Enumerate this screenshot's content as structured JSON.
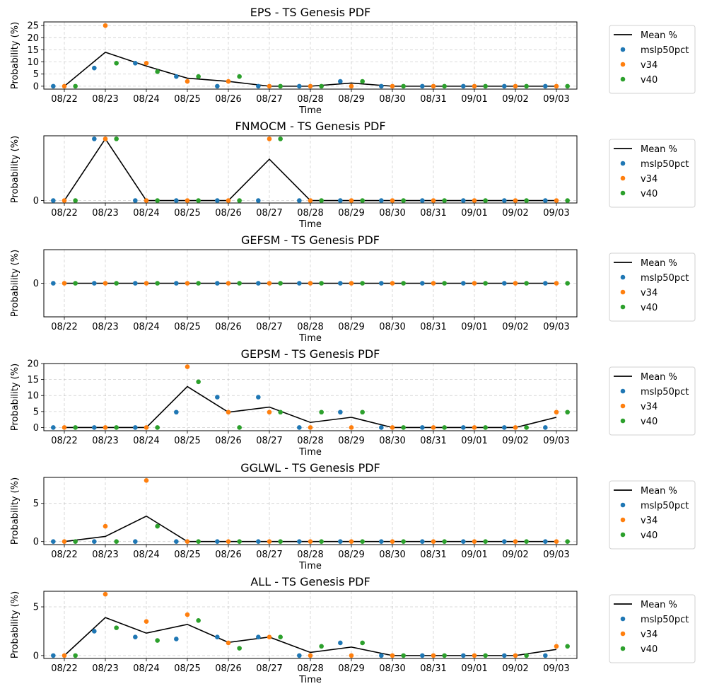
{
  "chart_data": [
    {
      "type": "scatter",
      "title": "EPS - TS Genesis PDF",
      "xlabel": "Time",
      "ylabel": "Probability (%)",
      "x_ticks": [
        "08/22",
        "08/23",
        "08/24",
        "08/25",
        "08/26",
        "08/27",
        "08/28",
        "08/29",
        "08/30",
        "08/31",
        "09/01",
        "09/02",
        "09/03"
      ],
      "y_ticks": [
        0,
        5,
        10,
        15,
        20,
        25
      ],
      "ylim": [
        -1.2,
        26.5
      ],
      "legend": [
        "Mean %",
        "mslp50pct",
        "v34",
        "v40"
      ],
      "series": [
        {
          "name": "mslp50pct",
          "x_offset": -0.27,
          "color": "#1f77b4",
          "values": [
            0,
            7.5,
            9.5,
            4,
            0,
            0,
            0,
            2,
            0,
            0,
            0,
            0,
            0
          ]
        },
        {
          "name": "v34",
          "x_offset": 0,
          "color": "#ff7f0e",
          "values": [
            0,
            25,
            9.5,
            2,
            2,
            0,
            0,
            0,
            0,
            0,
            0,
            0,
            0
          ]
        },
        {
          "name": "v40",
          "x_offset": 0.27,
          "color": "#2ca02c",
          "values": [
            0,
            9.5,
            6,
            4,
            4,
            0,
            0,
            2,
            0,
            0,
            0,
            0,
            0
          ]
        },
        {
          "name": "Mean %",
          "color": "#000000",
          "line": true,
          "values": [
            0,
            14,
            8.3,
            3.3,
            2,
            0,
            0,
            1.3,
            0,
            0,
            0,
            0,
            0
          ]
        }
      ]
    },
    {
      "type": "scatter",
      "title": "FNMOCM - TS Genesis PDF",
      "xlabel": "Time",
      "ylabel": "Probability (%)",
      "x_ticks": [
        "08/22",
        "08/23",
        "08/24",
        "08/25",
        "08/26",
        "08/27",
        "08/28",
        "08/29",
        "08/30",
        "08/31",
        "09/01",
        "09/02",
        "09/03"
      ],
      "y_ticks": [
        0
      ],
      "ylim": [
        -0.04,
        1.05
      ],
      "legend": [
        "Mean %",
        "mslp50pct",
        "v34",
        "v40"
      ],
      "series": [
        {
          "name": "mslp50pct",
          "x_offset": -0.27,
          "color": "#1f77b4",
          "values": [
            0,
            1,
            0,
            0,
            0,
            0,
            0,
            0,
            0,
            0,
            0,
            0,
            0
          ]
        },
        {
          "name": "v34",
          "x_offset": 0,
          "color": "#ff7f0e",
          "values": [
            0,
            1,
            0,
            0,
            0,
            1,
            0,
            0,
            0,
            0,
            0,
            0,
            0
          ]
        },
        {
          "name": "v40",
          "x_offset": 0.27,
          "color": "#2ca02c",
          "values": [
            0,
            1,
            0,
            0,
            0,
            1,
            0,
            0,
            0,
            0,
            0,
            0,
            0
          ]
        },
        {
          "name": "Mean %",
          "color": "#000000",
          "line": true,
          "values": [
            0,
            1,
            0,
            0,
            0,
            0.67,
            0,
            0,
            0,
            0,
            0,
            0,
            0
          ]
        }
      ]
    },
    {
      "type": "scatter",
      "title": "GEFSM - TS Genesis PDF",
      "xlabel": "Time",
      "ylabel": "Probability (%)",
      "x_ticks": [
        "08/22",
        "08/23",
        "08/24",
        "08/25",
        "08/26",
        "08/27",
        "08/28",
        "08/29",
        "08/30",
        "08/31",
        "09/01",
        "09/02",
        "09/03"
      ],
      "y_ticks": [
        0
      ],
      "ylim": [
        -0.055,
        0.055
      ],
      "legend": [
        "Mean %",
        "mslp50pct",
        "v34",
        "v40"
      ],
      "series": [
        {
          "name": "mslp50pct",
          "x_offset": -0.27,
          "color": "#1f77b4",
          "values": [
            0,
            0,
            0,
            0,
            0,
            0,
            0,
            0,
            0,
            0,
            0,
            0,
            0
          ]
        },
        {
          "name": "v34",
          "x_offset": 0,
          "color": "#ff7f0e",
          "values": [
            0,
            0,
            0,
            0,
            0,
            0,
            0,
            0,
            0,
            0,
            0,
            0,
            0
          ]
        },
        {
          "name": "v40",
          "x_offset": 0.27,
          "color": "#2ca02c",
          "values": [
            0,
            0,
            0,
            0,
            0,
            0,
            0,
            0,
            0,
            0,
            0,
            0,
            0
          ]
        },
        {
          "name": "Mean %",
          "color": "#000000",
          "line": true,
          "values": [
            0,
            0,
            0,
            0,
            0,
            0,
            0,
            0,
            0,
            0,
            0,
            0,
            0
          ]
        }
      ]
    },
    {
      "type": "scatter",
      "title": "GEPSM - TS Genesis PDF",
      "xlabel": "Time",
      "ylabel": "Probability (%)",
      "x_ticks": [
        "08/22",
        "08/23",
        "08/24",
        "08/25",
        "08/26",
        "08/27",
        "08/28",
        "08/29",
        "08/30",
        "08/31",
        "09/01",
        "09/02",
        "09/03"
      ],
      "y_ticks": [
        0,
        5,
        10,
        15,
        20
      ],
      "ylim": [
        -1,
        20
      ],
      "legend": [
        "Mean %",
        "mslp50pct",
        "v34",
        "v40"
      ],
      "series": [
        {
          "name": "mslp50pct",
          "x_offset": -0.27,
          "color": "#1f77b4",
          "values": [
            0,
            0,
            0,
            4.8,
            9.5,
            9.5,
            0,
            4.8,
            0,
            0,
            0,
            0,
            0
          ]
        },
        {
          "name": "v34",
          "x_offset": 0,
          "color": "#ff7f0e",
          "values": [
            0,
            0,
            0,
            19,
            4.8,
            4.8,
            0,
            0,
            0,
            0,
            0,
            0,
            4.8
          ]
        },
        {
          "name": "v40",
          "x_offset": 0.27,
          "color": "#2ca02c",
          "values": [
            0,
            0,
            0,
            14.3,
            0,
            4.8,
            4.8,
            4.8,
            0,
            0,
            0,
            0,
            4.8
          ]
        },
        {
          "name": "Mean %",
          "color": "#000000",
          "line": true,
          "values": [
            0,
            0,
            0,
            12.8,
            4.8,
            6.4,
            1.6,
            3.2,
            0,
            0,
            0,
            0,
            3.2
          ]
        }
      ]
    },
    {
      "type": "scatter",
      "title": "GGLWL - TS Genesis PDF",
      "xlabel": "Time",
      "ylabel": "Probability (%)",
      "x_ticks": [
        "08/22",
        "08/23",
        "08/24",
        "08/25",
        "08/26",
        "08/27",
        "08/28",
        "08/29",
        "08/30",
        "08/31",
        "09/01",
        "09/02",
        "09/03"
      ],
      "y_ticks": [
        0,
        5
      ],
      "ylim": [
        -0.4,
        8.4
      ],
      "legend": [
        "Mean %",
        "mslp50pct",
        "v34",
        "v40"
      ],
      "series": [
        {
          "name": "mslp50pct",
          "x_offset": -0.27,
          "color": "#1f77b4",
          "values": [
            0,
            0,
            0,
            0,
            0,
            0,
            0,
            0,
            0,
            0,
            0,
            0,
            0
          ]
        },
        {
          "name": "v34",
          "x_offset": 0,
          "color": "#ff7f0e",
          "values": [
            0,
            2,
            8,
            0,
            0,
            0,
            0,
            0,
            0,
            0,
            0,
            0,
            0
          ]
        },
        {
          "name": "v40",
          "x_offset": 0.27,
          "color": "#2ca02c",
          "values": [
            0,
            0,
            2,
            0,
            0,
            0,
            0,
            0,
            0,
            0,
            0,
            0,
            0
          ]
        },
        {
          "name": "Mean %",
          "color": "#000000",
          "line": true,
          "values": [
            0,
            0.67,
            3.33,
            0,
            0,
            0,
            0,
            0,
            0,
            0,
            0,
            0,
            0
          ]
        }
      ]
    },
    {
      "type": "scatter",
      "title": "ALL - TS Genesis PDF",
      "xlabel": "Time",
      "ylabel": "Probability (%)",
      "x_ticks": [
        "08/22",
        "08/23",
        "08/24",
        "08/25",
        "08/26",
        "08/27",
        "08/28",
        "08/29",
        "08/30",
        "08/31",
        "09/01",
        "09/02",
        "09/03"
      ],
      "y_ticks": [
        0,
        5
      ],
      "ylim": [
        -0.3,
        6.6
      ],
      "legend": [
        "Mean %",
        "mslp50pct",
        "v34",
        "v40"
      ],
      "series": [
        {
          "name": "mslp50pct",
          "x_offset": -0.27,
          "color": "#1f77b4",
          "values": [
            0,
            2.5,
            1.9,
            1.7,
            1.9,
            1.9,
            0,
            1.3,
            0,
            0,
            0,
            0,
            0
          ]
        },
        {
          "name": "v34",
          "x_offset": 0,
          "color": "#ff7f0e",
          "values": [
            0,
            6.3,
            3.5,
            4.2,
            1.3,
            1.9,
            0,
            0,
            0,
            0,
            0,
            0,
            0.95
          ]
        },
        {
          "name": "v40",
          "x_offset": 0.27,
          "color": "#2ca02c",
          "values": [
            0,
            2.85,
            1.55,
            3.6,
            0.75,
            1.9,
            0.95,
            1.3,
            0,
            0,
            0,
            0,
            0.95
          ]
        },
        {
          "name": "Mean %",
          "color": "#000000",
          "line": true,
          "values": [
            0,
            3.9,
            2.3,
            3.2,
            1.35,
            1.9,
            0.32,
            0.87,
            0,
            0,
            0,
            0,
            0.63
          ]
        }
      ]
    }
  ]
}
